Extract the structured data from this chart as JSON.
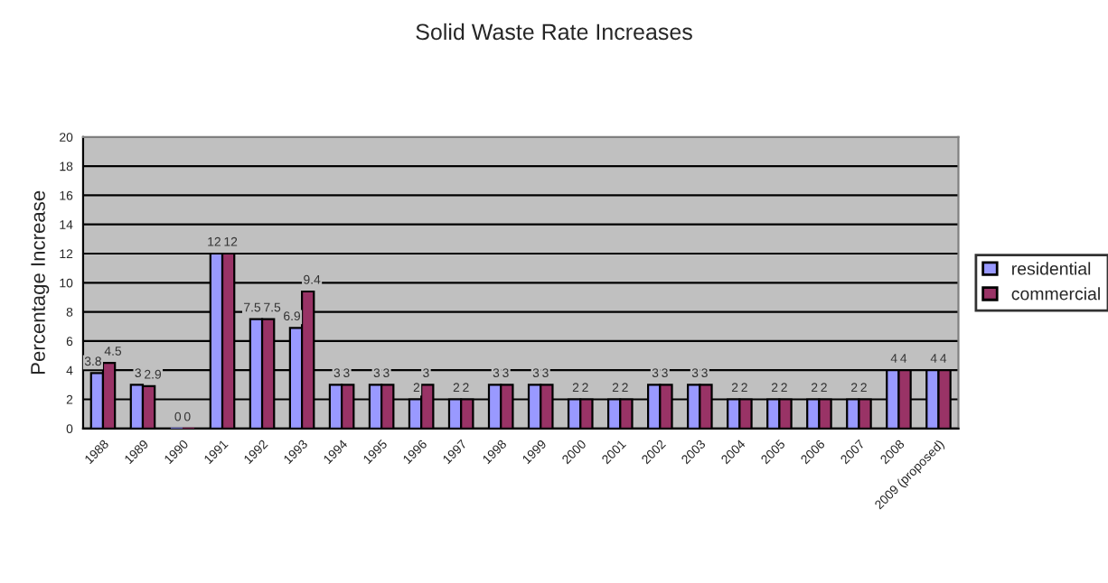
{
  "chart_data": {
    "type": "bar",
    "title": "Solid Waste Rate Increases",
    "ylabel": "Percentage Increase",
    "categories": [
      "1988",
      "1989",
      "1990",
      "1991",
      "1992",
      "1993",
      "1994",
      "1995",
      "1996",
      "1997",
      "1998",
      "1999",
      "2000",
      "2001",
      "2002",
      "2003",
      "2004",
      "2005",
      "2006",
      "2007",
      "2008",
      "2009 (proposed)"
    ],
    "series": [
      {
        "name": "residential",
        "color": "#9999ff",
        "values": [
          3.8,
          3,
          0,
          12,
          7.5,
          6.9,
          3,
          3,
          2,
          2,
          3,
          3,
          2,
          2,
          3,
          3,
          2,
          2,
          2,
          2,
          4,
          4
        ]
      },
      {
        "name": "commercial",
        "color": "#993366",
        "values": [
          4.5,
          2.9,
          0,
          12,
          7.5,
          9.4,
          3,
          3,
          3,
          2,
          3,
          3,
          2,
          2,
          3,
          3,
          2,
          2,
          2,
          2,
          4,
          4
        ]
      }
    ],
    "ylim": [
      0,
      20
    ],
    "yticks": [
      0,
      2,
      4,
      6,
      8,
      10,
      12,
      14,
      16,
      18,
      20
    ],
    "grid": "y",
    "legend": "right",
    "data_labels": true
  }
}
